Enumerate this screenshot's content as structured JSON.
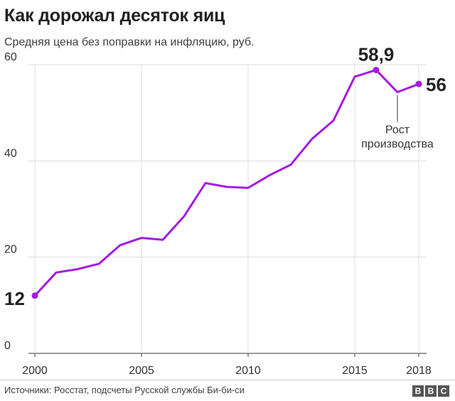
{
  "title": "Как дорожал десяток яиц",
  "subtitle": "Средняя цена без поправки на инфляцию, руб.",
  "source": "Источники: Росстат, подсчеты Русской службы Би-би-си",
  "logo": {
    "letters": [
      "B",
      "B",
      "C"
    ]
  },
  "colors": {
    "line": "#a51ae3",
    "grid": "#dddddd",
    "axis": "#333333",
    "text": "#222222"
  },
  "chart_data": {
    "type": "line",
    "title": "Как дорожал десяток яиц",
    "subtitle": "Средняя цена без поправки на инфляцию, руб.",
    "xlabel": "",
    "ylabel": "",
    "xlim": [
      2000,
      2018
    ],
    "ylim": [
      0,
      60
    ],
    "grid": true,
    "x_ticks": [
      {
        "value": 2000,
        "label": "2000"
      },
      {
        "value": 2005,
        "label": "2005"
      },
      {
        "value": 2010,
        "label": "2010"
      },
      {
        "value": 2015,
        "label": "2015"
      },
      {
        "value": 2018,
        "label": "2018"
      }
    ],
    "y_ticks": [
      {
        "value": 0,
        "label": "0"
      },
      {
        "value": 20,
        "label": "20"
      },
      {
        "value": 40,
        "label": "40"
      },
      {
        "value": 60,
        "label": "60"
      }
    ],
    "series": [
      {
        "x": [
          2000,
          2001,
          2002,
          2003,
          2004,
          2005,
          2006,
          2007,
          2008,
          2009,
          2010,
          2011,
          2012,
          2013,
          2014,
          2015,
          2016,
          2017,
          2018
        ],
        "values": [
          12.0,
          16.8,
          17.5,
          18.6,
          22.5,
          24.0,
          23.6,
          28.5,
          35.4,
          34.6,
          34.4,
          37.0,
          39.2,
          44.6,
          48.4,
          57.5,
          58.9,
          54.3,
          56.0
        ]
      }
    ],
    "markers": [
      {
        "x": 2000,
        "y": 12.0
      },
      {
        "x": 2016,
        "y": 58.9
      },
      {
        "x": 2018,
        "y": 56.0
      }
    ],
    "value_labels": [
      {
        "text": "12",
        "x": 2000,
        "y": 12.0
      },
      {
        "text": "58,9",
        "x": 2016,
        "y": 58.9
      },
      {
        "text": "56",
        "x": 2018,
        "y": 56.0
      }
    ],
    "annotation": {
      "x": 2017,
      "y": 54.3,
      "lines": [
        "Рост",
        "производства"
      ]
    }
  }
}
